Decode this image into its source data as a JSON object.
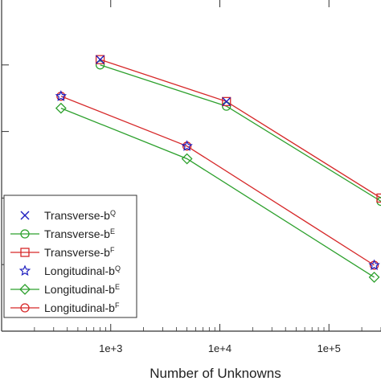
{
  "chart_data": {
    "type": "line",
    "title": "",
    "xlabel": "Number of Unknowns",
    "ylabel": "",
    "xscale": "log",
    "xlim": [
      100,
      300000
    ],
    "ylim": [
      0,
      5
    ],
    "grid": false,
    "legend_position": "bottom-left",
    "x_ticks": [
      {
        "value": 1000,
        "label": "1e+3"
      },
      {
        "value": 10000,
        "label": "1e+4"
      },
      {
        "value": 100000,
        "label": "1e+5"
      }
    ],
    "y_ticks": [
      1,
      2,
      3,
      4
    ],
    "series": [
      {
        "name_main": "Transverse-b",
        "name_sup": "Q",
        "marker": "x",
        "color": "#1f1fbf",
        "line": false,
        "x": [
          800,
          11500
        ],
        "y": [
          4.08,
          3.45
        ]
      },
      {
        "name_main": "Transverse-b",
        "name_sup": "E",
        "marker": "circle",
        "color": "#2ca02c",
        "line": true,
        "x": [
          800,
          11500,
          300000
        ],
        "y": [
          4.0,
          3.38,
          1.95
        ]
      },
      {
        "name_main": "Transverse-b",
        "name_sup": "F",
        "marker": "square",
        "color": "#d62728",
        "line": true,
        "x": [
          800,
          11500,
          300000
        ],
        "y": [
          4.08,
          3.45,
          2.0
        ]
      },
      {
        "name_main": "Longitudinal-b",
        "name_sup": "Q",
        "marker": "star",
        "color": "#1f1fbf",
        "line": false,
        "x": [
          350,
          5000,
          260000
        ],
        "y": [
          3.53,
          2.78,
          0.99
        ]
      },
      {
        "name_main": "Longitudinal-b",
        "name_sup": "E",
        "marker": "diamond",
        "color": "#2ca02c",
        "line": true,
        "x": [
          350,
          5000,
          260000
        ],
        "y": [
          3.35,
          2.59,
          0.81
        ]
      },
      {
        "name_main": "Longitudinal-b",
        "name_sup": "F",
        "marker": "circle",
        "color": "#d62728",
        "line": true,
        "x": [
          350,
          5000,
          260000
        ],
        "y": [
          3.53,
          2.78,
          0.99
        ]
      }
    ]
  }
}
